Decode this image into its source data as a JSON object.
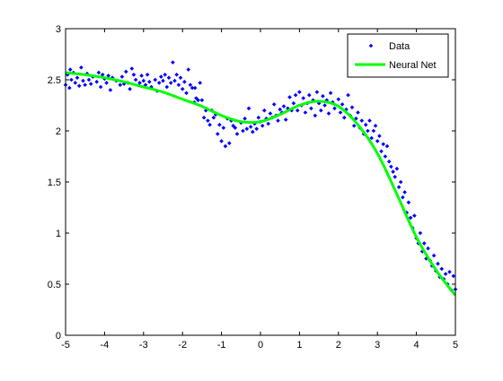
{
  "chart_data": {
    "type": "scatter",
    "xlim": [
      -5,
      5
    ],
    "ylim": [
      0,
      3
    ],
    "xticks": [
      -5,
      -4,
      -3,
      -2,
      -1,
      0,
      1,
      2,
      3,
      4,
      5
    ],
    "yticks": [
      0,
      0.5,
      1,
      1.5,
      2,
      2.5,
      3
    ],
    "xtick_labels": [
      "-5",
      "-4",
      "-3",
      "-2",
      "-1",
      "0",
      "1",
      "2",
      "3",
      "4",
      "5"
    ],
    "ytick_labels": [
      "0",
      "0.5",
      "1",
      "1.5",
      "2",
      "2.5",
      "3"
    ],
    "grid": false,
    "legend_position": "top-right",
    "series": [
      {
        "name": "Data",
        "type": "scatter",
        "color": "#0000ff",
        "marker": "diamond",
        "points": [
          [
            -5.0,
            2.45
          ],
          [
            -4.95,
            2.55
          ],
          [
            -4.9,
            2.42
          ],
          [
            -4.88,
            2.6
          ],
          [
            -4.85,
            2.5
          ],
          [
            -4.8,
            2.57
          ],
          [
            -4.75,
            2.47
          ],
          [
            -4.7,
            2.52
          ],
          [
            -4.65,
            2.44
          ],
          [
            -4.6,
            2.62
          ],
          [
            -4.55,
            2.49
          ],
          [
            -4.5,
            2.45
          ],
          [
            -4.45,
            2.56
          ],
          [
            -4.4,
            2.5
          ],
          [
            -4.35,
            2.46
          ],
          [
            -4.3,
            2.53
          ],
          [
            -4.2,
            2.48
          ],
          [
            -4.15,
            2.57
          ],
          [
            -4.1,
            2.43
          ],
          [
            -4.05,
            2.55
          ],
          [
            -4.0,
            2.51
          ],
          [
            -3.95,
            2.47
          ],
          [
            -3.9,
            2.54
          ],
          [
            -3.85,
            2.4
          ],
          [
            -3.8,
            2.52
          ],
          [
            -3.7,
            2.49
          ],
          [
            -3.6,
            2.45
          ],
          [
            -3.55,
            2.53
          ],
          [
            -3.5,
            2.46
          ],
          [
            -3.45,
            2.58
          ],
          [
            -3.4,
            2.47
          ],
          [
            -3.35,
            2.41
          ],
          [
            -3.3,
            2.61
          ],
          [
            -3.25,
            2.55
          ],
          [
            -3.2,
            2.5
          ],
          [
            -3.1,
            2.47
          ],
          [
            -3.05,
            2.54
          ],
          [
            -3.0,
            2.49
          ],
          [
            -2.95,
            2.45
          ],
          [
            -2.9,
            2.55
          ],
          [
            -2.85,
            2.48
          ],
          [
            -2.8,
            2.43
          ],
          [
            -2.7,
            2.5
          ],
          [
            -2.65,
            2.39
          ],
          [
            -2.6,
            2.47
          ],
          [
            -2.55,
            2.53
          ],
          [
            -2.5,
            2.49
          ],
          [
            -2.45,
            2.55
          ],
          [
            -2.4,
            2.43
          ],
          [
            -2.35,
            2.52
          ],
          [
            -2.3,
            2.47
          ],
          [
            -2.25,
            2.67
          ],
          [
            -2.2,
            2.49
          ],
          [
            -2.15,
            2.55
          ],
          [
            -2.1,
            2.45
          ],
          [
            -2.05,
            2.52
          ],
          [
            -2.0,
            2.41
          ],
          [
            -1.95,
            2.48
          ],
          [
            -1.9,
            2.37
          ],
          [
            -1.85,
            2.6
          ],
          [
            -1.8,
            2.45
          ],
          [
            -1.75,
            2.42
          ],
          [
            -1.7,
            2.28
          ],
          [
            -1.68,
            2.42
          ],
          [
            -1.65,
            2.32
          ],
          [
            -1.6,
            2.3
          ],
          [
            -1.55,
            2.47
          ],
          [
            -1.5,
            2.3
          ],
          [
            -1.45,
            2.13
          ],
          [
            -1.4,
            2.2
          ],
          [
            -1.35,
            2.1
          ],
          [
            -1.3,
            2.06
          ],
          [
            -1.25,
            2.2
          ],
          [
            -1.2,
            2.13
          ],
          [
            -1.15,
            2.16
          ],
          [
            -1.1,
            1.97
          ],
          [
            -1.05,
            2.06
          ],
          [
            -1.0,
            1.9
          ],
          [
            -0.95,
            2.03
          ],
          [
            -0.9,
            1.85
          ],
          [
            -0.85,
            2.12
          ],
          [
            -0.8,
            1.88
          ],
          [
            -0.75,
            2.1
          ],
          [
            -0.7,
            2.05
          ],
          [
            -0.65,
            2.03
          ],
          [
            -0.6,
            1.97
          ],
          [
            -0.5,
            2.08
          ],
          [
            -0.45,
            2.0
          ],
          [
            -0.4,
            2.12
          ],
          [
            -0.35,
            2.02
          ],
          [
            -0.3,
            2.22
          ],
          [
            -0.25,
            2.04
          ],
          [
            -0.2,
            1.99
          ],
          [
            -0.15,
            2.07
          ],
          [
            -0.1,
            2.02
          ],
          [
            -0.05,
            2.13
          ],
          [
            0.0,
            2.09
          ],
          [
            0.05,
            2.05
          ],
          [
            0.1,
            2.2
          ],
          [
            0.15,
            2.12
          ],
          [
            0.2,
            2.07
          ],
          [
            0.25,
            2.17
          ],
          [
            0.3,
            2.13
          ],
          [
            0.35,
            2.26
          ],
          [
            0.4,
            2.15
          ],
          [
            0.45,
            2.1
          ],
          [
            0.5,
            2.21
          ],
          [
            0.55,
            2.18
          ],
          [
            0.6,
            2.24
          ],
          [
            0.65,
            2.11
          ],
          [
            0.7,
            2.22
          ],
          [
            0.75,
            2.33
          ],
          [
            0.8,
            2.2
          ],
          [
            0.85,
            2.27
          ],
          [
            0.9,
            2.35
          ],
          [
            0.95,
            2.2
          ],
          [
            1.0,
            2.38
          ],
          [
            1.05,
            2.25
          ],
          [
            1.1,
            2.32
          ],
          [
            1.15,
            2.18
          ],
          [
            1.2,
            2.27
          ],
          [
            1.25,
            2.35
          ],
          [
            1.3,
            2.22
          ],
          [
            1.35,
            2.3
          ],
          [
            1.4,
            2.15
          ],
          [
            1.45,
            2.38
          ],
          [
            1.5,
            2.27
          ],
          [
            1.55,
            2.2
          ],
          [
            1.6,
            2.34
          ],
          [
            1.65,
            2.25
          ],
          [
            1.7,
            2.3
          ],
          [
            1.75,
            2.17
          ],
          [
            1.8,
            2.37
          ],
          [
            1.85,
            2.28
          ],
          [
            1.9,
            2.22
          ],
          [
            2.0,
            2.31
          ],
          [
            2.05,
            2.18
          ],
          [
            2.1,
            2.26
          ],
          [
            2.15,
            2.13
          ],
          [
            2.2,
            2.21
          ],
          [
            2.25,
            2.35
          ],
          [
            2.3,
            2.15
          ],
          [
            2.35,
            2.23
          ],
          [
            2.4,
            2.05
          ],
          [
            2.45,
            2.12
          ],
          [
            2.5,
            2.18
          ],
          [
            2.55,
            2.03
          ],
          [
            2.6,
            2.1
          ],
          [
            2.65,
            1.97
          ],
          [
            2.7,
            2.06
          ],
          [
            2.75,
            2.0
          ],
          [
            2.8,
            2.1
          ],
          [
            2.85,
            1.93
          ],
          [
            2.9,
            2.0
          ],
          [
            2.95,
            2.05
          ],
          [
            3.0,
            1.9
          ],
          [
            3.05,
            1.95
          ],
          [
            3.1,
            1.8
          ],
          [
            3.15,
            1.87
          ],
          [
            3.2,
            1.75
          ],
          [
            3.25,
            1.85
          ],
          [
            3.3,
            1.7
          ],
          [
            3.35,
            1.65
          ],
          [
            3.4,
            1.6
          ],
          [
            3.45,
            1.55
          ],
          [
            3.5,
            1.63
          ],
          [
            3.55,
            1.45
          ],
          [
            3.6,
            1.5
          ],
          [
            3.65,
            1.35
          ],
          [
            3.7,
            1.4
          ],
          [
            3.75,
            1.2
          ],
          [
            3.8,
            1.3
          ],
          [
            3.85,
            1.15
          ],
          [
            3.9,
            1.05
          ],
          [
            3.95,
            1.17
          ],
          [
            4.0,
            0.95
          ],
          [
            4.05,
            0.9
          ],
          [
            4.1,
            1.0
          ],
          [
            4.15,
            0.82
          ],
          [
            4.2,
            0.9
          ],
          [
            4.25,
            0.75
          ],
          [
            4.3,
            0.85
          ],
          [
            4.35,
            0.73
          ],
          [
            4.4,
            0.68
          ],
          [
            4.45,
            0.78
          ],
          [
            4.5,
            0.63
          ],
          [
            4.55,
            0.7
          ],
          [
            4.6,
            0.57
          ],
          [
            4.65,
            0.65
          ],
          [
            4.7,
            0.55
          ],
          [
            4.75,
            0.6
          ],
          [
            4.8,
            0.5
          ],
          [
            4.85,
            0.62
          ],
          [
            4.9,
            0.44
          ],
          [
            4.95,
            0.58
          ],
          [
            5.0,
            0.45
          ]
        ]
      },
      {
        "name": "Neural Net",
        "type": "line",
        "color": "#00ff00",
        "points": [
          [
            -5.0,
            2.57
          ],
          [
            -4.5,
            2.55
          ],
          [
            -4.0,
            2.52
          ],
          [
            -3.5,
            2.48
          ],
          [
            -3.0,
            2.43
          ],
          [
            -2.5,
            2.38
          ],
          [
            -2.0,
            2.31
          ],
          [
            -1.5,
            2.24
          ],
          [
            -1.0,
            2.15
          ],
          [
            -0.5,
            2.09
          ],
          [
            0.0,
            2.09
          ],
          [
            0.5,
            2.16
          ],
          [
            1.0,
            2.25
          ],
          [
            1.5,
            2.29
          ],
          [
            2.0,
            2.24
          ],
          [
            2.5,
            2.06
          ],
          [
            3.0,
            1.78
          ],
          [
            3.5,
            1.38
          ],
          [
            4.0,
            0.96
          ],
          [
            4.5,
            0.64
          ],
          [
            5.0,
            0.39
          ]
        ]
      }
    ]
  }
}
